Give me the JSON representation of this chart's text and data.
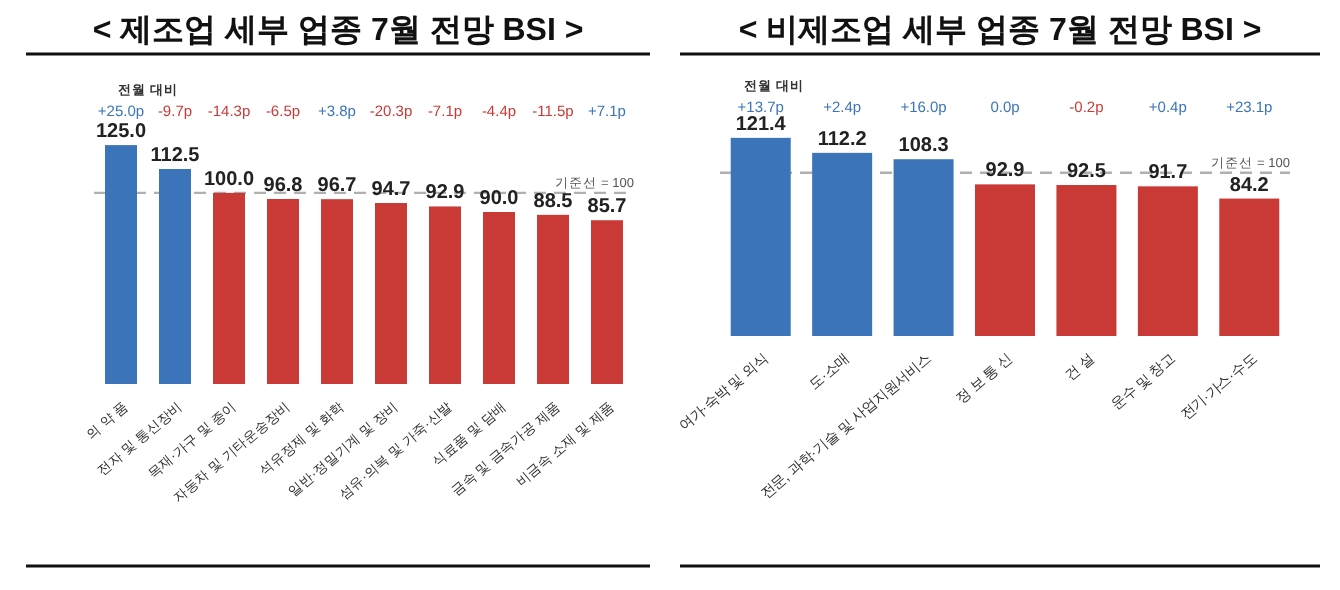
{
  "chart_data": [
    {
      "type": "bar",
      "title": "< 제조업 세부 업종 7월 전망 BSI >",
      "categories": [
        "의 약 품",
        "전자 및 통신장비",
        "목재·가구 및 종이",
        "자동차 및 기타운송장비",
        "석유정제 및 화학",
        "일반·정밀기계 및 장비",
        "섬유·의복 및 가죽·신발",
        "식료품 및 담배",
        "금속 및 금속가공 제품",
        "비금속 소재 및 제품"
      ],
      "values": [
        125.0,
        112.5,
        100.0,
        96.8,
        96.7,
        94.7,
        92.9,
        90.0,
        88.5,
        85.7
      ],
      "value_labels": [
        "125.0",
        "112.5",
        "100.0",
        "96.8",
        "96.7",
        "94.7",
        "92.9",
        "90.0",
        "88.5",
        "85.7"
      ],
      "colors": [
        "#3b74b9",
        "#3b74b9",
        "#c93a36",
        "#c93a36",
        "#c93a36",
        "#c93a36",
        "#c93a36",
        "#c93a36",
        "#c93a36",
        "#c93a36"
      ],
      "ref_lines": [
        {
          "axis": "y",
          "value": 100,
          "label": "기준선 = 100",
          "color": "#b0b0b0",
          "line_style": "dashed"
        }
      ],
      "annotations": [
        "전월 대비",
        "+25.0p",
        "-9.7p",
        "-14.3p",
        "-6.5p",
        "+3.8p",
        "-20.3p",
        "-7.1p",
        "-4.4p",
        "-11.5p",
        "+7.1p"
      ]
    },
    {
      "type": "bar",
      "title": "< 비제조업 세부 업종 7월 전망 BSI >",
      "categories": [
        "여가·숙박 및 외식",
        "도·소매",
        "전문, 과학·기술 및 사업지원서비스",
        "정 보 통 신",
        "건 설",
        "운수 및 창고",
        "전기·가스·수도"
      ],
      "values": [
        121.4,
        112.2,
        108.3,
        92.9,
        92.5,
        91.7,
        84.2
      ],
      "value_labels": [
        "121.4",
        "112.2",
        "108.3",
        "92.9",
        "92.5",
        "91.7",
        "84.2"
      ],
      "colors": [
        "#3b74b9",
        "#3b74b9",
        "#3b74b9",
        "#c93a36",
        "#c93a36",
        "#c93a36",
        "#c93a36"
      ],
      "ref_lines": [
        {
          "axis": "y",
          "value": 100,
          "label": "기준선 = 100",
          "color": "#b0b0b0",
          "line_style": "dashed"
        }
      ],
      "annotations": [
        "전월 대비",
        "+13.7p",
        "+2.4p",
        "+16.0p",
        "0.0p",
        "-0.2p",
        "+0.4p",
        "+23.1p"
      ]
    }
  ]
}
